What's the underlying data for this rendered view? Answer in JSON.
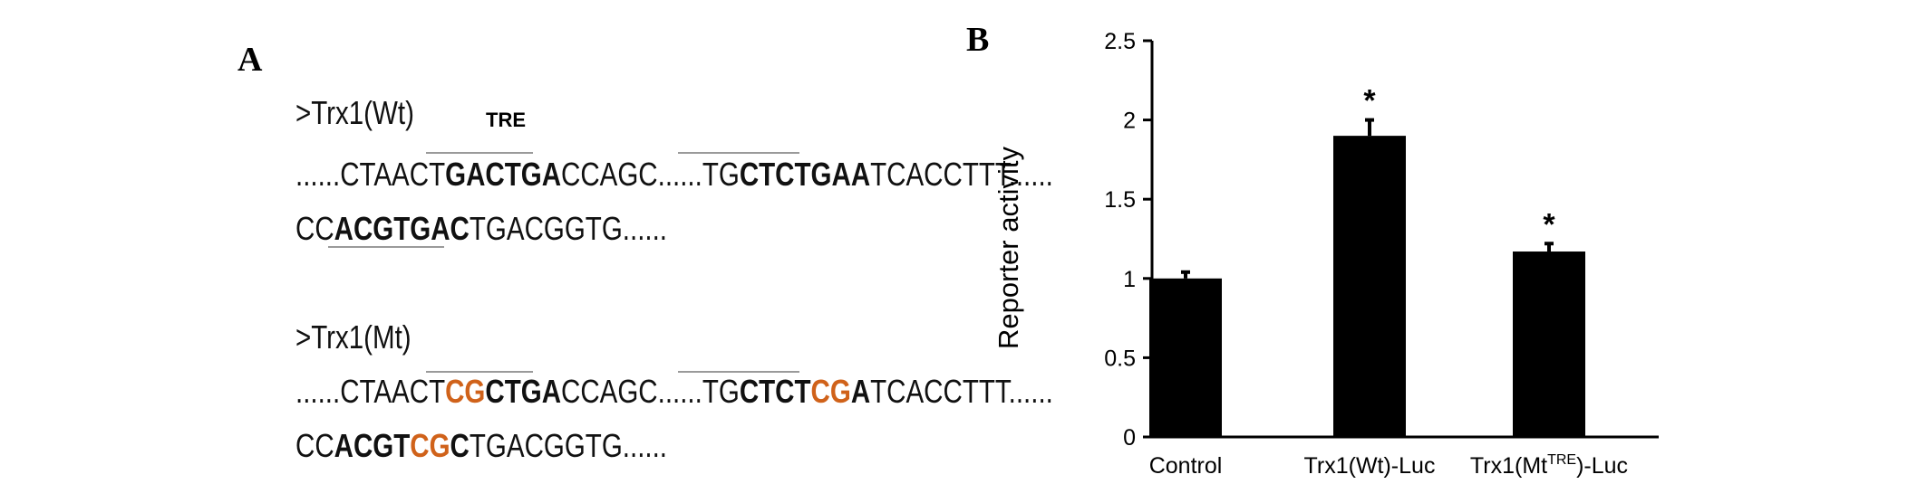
{
  "panel_a": {
    "letter": "A",
    "wt": {
      "name": ">Trx1(Wt)",
      "tre_label": "TRE",
      "line1": [
        {
          "t": "......CTAACT",
          "s": "n"
        },
        {
          "t": "GACTGA",
          "s": "b"
        },
        {
          "t": "CCAGC......TG",
          "s": "n"
        },
        {
          "t": "CTCTGAA",
          "s": "b"
        },
        {
          "t": "TCACCTTT......",
          "s": "n"
        }
      ],
      "line2": [
        {
          "t": "CC",
          "s": "n"
        },
        {
          "t": "ACGTGAC",
          "s": "b"
        },
        {
          "t": "TGACGGTG......",
          "s": "n"
        }
      ]
    },
    "mt": {
      "name": ">Trx1(Mt)",
      "line1": [
        {
          "t": "......CTAACT",
          "s": "n"
        },
        {
          "t": "CG",
          "s": "m"
        },
        {
          "t": "CTGA",
          "s": "b"
        },
        {
          "t": "CCAGC......TG",
          "s": "n"
        },
        {
          "t": "CTCT",
          "s": "b"
        },
        {
          "t": "CG",
          "s": "m"
        },
        {
          "t": "A",
          "s": "b"
        },
        {
          "t": "TCACCTTT......",
          "s": "n"
        }
      ],
      "line2": [
        {
          "t": "CC",
          "s": "n"
        },
        {
          "t": "ACGT",
          "s": "b"
        },
        {
          "t": "CG",
          "s": "m"
        },
        {
          "t": "C",
          "s": "b"
        },
        {
          "t": "TGACGGTG......",
          "s": "n"
        }
      ]
    },
    "colors": {
      "mutation": "#d0621a",
      "text": "#111111"
    }
  },
  "panel_b": {
    "letter": "B"
  },
  "chart_data": {
    "type": "bar",
    "categories": [
      "Control",
      "Trx1(Wt)-Luc",
      "Trx1(Mt^TRE)-Luc"
    ],
    "category_labels": [
      {
        "base": "Control",
        "sup": "",
        "tail": ""
      },
      {
        "base": "Trx1(Wt)-Luc",
        "sup": "",
        "tail": ""
      },
      {
        "base": "Trx1(Mt",
        "sup": "TRE",
        "tail": ")-Luc"
      }
    ],
    "values": [
      1.0,
      1.9,
      1.17
    ],
    "errors": [
      0.04,
      0.1,
      0.05
    ],
    "annotations": [
      "",
      "*",
      "*"
    ],
    "ylabel": "Reporter activity",
    "xlabel": "",
    "ylim": [
      0,
      2.5
    ],
    "yticks": [
      0,
      0.5,
      1,
      1.5,
      2,
      2.5
    ],
    "ytick_labels": [
      "0",
      "0.5",
      "1",
      "1.5",
      "2",
      "2.5"
    ],
    "grid": false,
    "bar_color": "#000000"
  }
}
